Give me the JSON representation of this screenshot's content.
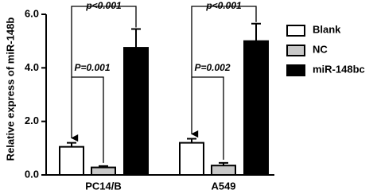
{
  "chart_data": {
    "type": "bar",
    "y_label": "Relative express of miR-148b",
    "categories": [
      "PC14/B",
      "A549"
    ],
    "series": [
      {
        "name": "Blank",
        "color": "#ffffff",
        "values": [
          1.05,
          1.2
        ],
        "errors": [
          0.15,
          0.15
        ]
      },
      {
        "name": "NC",
        "color": "#c8c8c8",
        "values": [
          0.28,
          0.35
        ],
        "errors": [
          0.05,
          0.1
        ]
      },
      {
        "name": "miR-148bc",
        "color": "#000000",
        "values": [
          4.75,
          5.0
        ],
        "errors": [
          0.7,
          0.65
        ]
      }
    ],
    "ylim": [
      0,
      6
    ],
    "yticks": [
      {
        "value": 0,
        "label": "0.0"
      },
      {
        "value": 2,
        "label": "2.0"
      },
      {
        "value": 4,
        "label": "4.0"
      },
      {
        "value": 6,
        "label": "6.0"
      }
    ],
    "annotations": [
      "p<0.001",
      "P=0.001",
      "p<0.001",
      "P=0.002"
    ]
  }
}
